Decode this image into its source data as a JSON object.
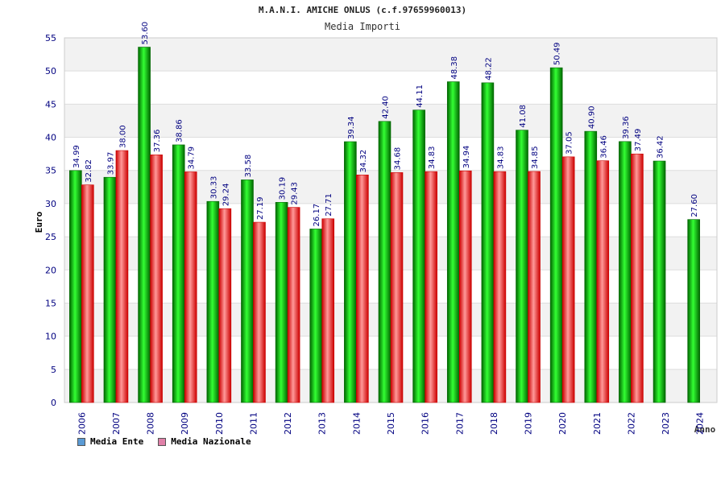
{
  "chart_data": {
    "type": "bar",
    "title": "M.A.N.I. AMICHE ONLUS (c.f.97659960013)",
    "subtitle": "Media Importi",
    "xlabel": "Anno",
    "ylabel": "Euro",
    "ylim": [
      0,
      55
    ],
    "yticks": [
      "0",
      "5",
      "10",
      "15",
      "20",
      "25",
      "30",
      "35",
      "40",
      "45",
      "50",
      "55"
    ],
    "grid": true,
    "legend_position": "bottom-left",
    "categories": [
      "2006",
      "2007",
      "2008",
      "2009",
      "2010",
      "2011",
      "2012",
      "2013",
      "2014",
      "2015",
      "2016",
      "2017",
      "2018",
      "2019",
      "2020",
      "2021",
      "2022",
      "2023",
      "2024"
    ],
    "series": [
      {
        "name": "Media Ente",
        "values": [
          34.99,
          33.97,
          53.6,
          38.86,
          30.33,
          33.58,
          30.19,
          26.17,
          39.34,
          42.4,
          44.11,
          48.38,
          48.22,
          41.08,
          50.49,
          40.9,
          39.36,
          36.42,
          27.6
        ],
        "labels": [
          "34.99",
          "33.97",
          "53.60",
          "38.86",
          "30.33",
          "33.58",
          "30.19",
          "26.17",
          "39.34",
          "42.40",
          "44.11",
          "48.38",
          "48.22",
          "41.08",
          "50.49",
          "40.90",
          "39.36",
          "36.42",
          "27.60"
        ]
      },
      {
        "name": "Media Nazionale",
        "values": [
          32.82,
          38.0,
          37.36,
          34.79,
          29.24,
          27.19,
          29.43,
          27.71,
          34.32,
          34.68,
          34.83,
          34.94,
          34.83,
          34.85,
          37.05,
          36.46,
          37.49,
          null,
          null
        ],
        "labels": [
          "32.82",
          "38.00",
          "37.36",
          "34.79",
          "29.24",
          "27.19",
          "29.43",
          "27.71",
          "34.32",
          "34.68",
          "34.83",
          "34.94",
          "34.83",
          "34.85",
          "37.05",
          "36.46",
          "37.49",
          null,
          null
        ]
      }
    ]
  },
  "legend": {
    "items": [
      {
        "label": "Media Ente",
        "color": "#5b9bd5"
      },
      {
        "label": "Media Nazionale",
        "color": "#e080a8"
      }
    ]
  },
  "colors": {
    "ente_dark": "#006600",
    "ente_light": "#33ff33",
    "nazionale_dark": "#cc0000",
    "nazionale_light": "#ff9999",
    "axis_text": "#000080",
    "value_label": "#000080",
    "band": "#f2f2f2",
    "grid": "#dddddd"
  }
}
